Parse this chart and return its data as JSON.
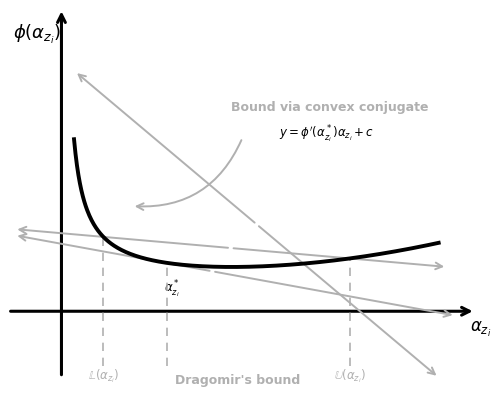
{
  "bg_color": "#ffffff",
  "curve_color": "#000000",
  "axis_color": "#000000",
  "gray_color": "#b0b0b0",
  "dashed_color": "#b0b0b0",
  "alpha_star": 0.58,
  "L": 0.25,
  "U": 1.72,
  "curve_A": 0.1,
  "curve_B": 0.28,
  "curve_C": 0.09,
  "ylabel_text": "$\\phi(\\alpha_{z_i})$",
  "xlabel_text": "$\\boldsymbol{\\alpha_{z_i}}$",
  "tangent_label": "$y = \\phi'(\\alpha^*_{z_i})\\alpha_{z_i} + c$",
  "L_label": "$\\mathbb{L}(\\alpha_{z_i})$",
  "U_label": "$\\mathbb{U}(\\alpha_{z_i})$",
  "alpha_star_label": "$\\alpha^*_{z_i}$",
  "bound_convex_label": "Bound via convex conjugate",
  "dragomir_label": "Dragomir's bound"
}
